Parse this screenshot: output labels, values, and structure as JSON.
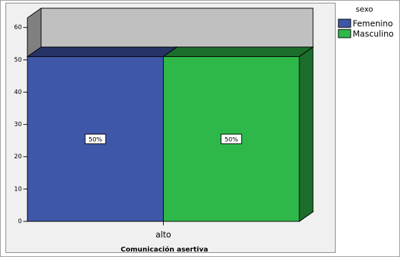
{
  "chart_data": {
    "type": "bar",
    "x_label": "Comunicación asertiva",
    "legend_title": "sexo",
    "categories": [
      "alto"
    ],
    "series": [
      {
        "name": "Femenino",
        "color": "#3f57a8",
        "values": [
          51
        ],
        "value_labels": [
          "50%"
        ]
      },
      {
        "name": "Masculino",
        "color": "#2fb84a",
        "values": [
          51
        ],
        "value_labels": [
          "50%"
        ]
      }
    ],
    "ylim": [
      0,
      63
    ],
    "yticks": [
      0,
      10,
      20,
      30,
      40,
      50,
      60
    ],
    "legend": "right"
  }
}
